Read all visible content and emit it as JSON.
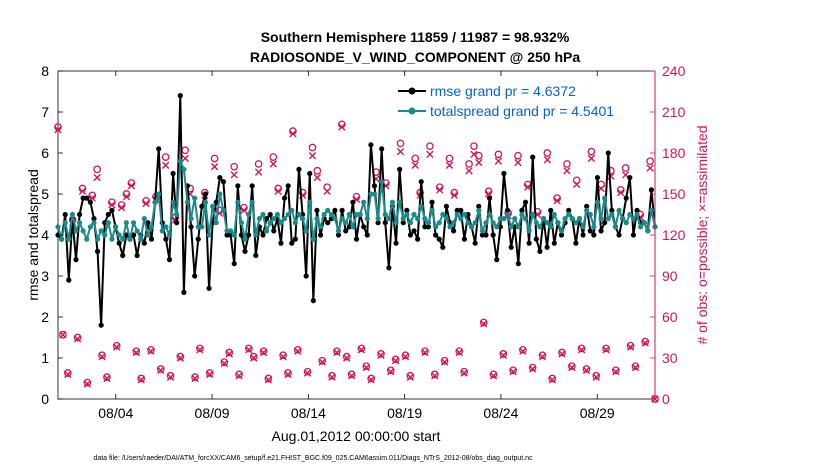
{
  "chart_data": {
    "type": "line",
    "title": "Southern Hemisphere 11859 / 11987 = 98.932%",
    "subtitle": "RADIOSONDE_V_WIND_COMPONENT @ 250 hPa",
    "xlabel": "Aug.01,2012 00:00:00 start",
    "ylabel": "rmse and totalspread",
    "y2label": "# of obs: o=possible; ×=assimilated",
    "footnote": "data file: /Users/raeder/DAI/ATM_forcXX/CAM6_setup/f.e21.FHIST_BGC.f09_025.CAM6assim.011/Diags_NTrS_2012-08/obs_diag_output.nc",
    "x_ticks": [
      "08/04",
      "08/09",
      "08/14",
      "08/19",
      "08/24",
      "08/29"
    ],
    "x_tick_days": [
      4,
      9,
      14,
      19,
      24,
      29
    ],
    "xlim_days": [
      1,
      32
    ],
    "ylim": [
      0,
      8
    ],
    "y_ticks": [
      "0",
      "1",
      "2",
      "3",
      "4",
      "5",
      "6",
      "7",
      "8"
    ],
    "y2lim": [
      0,
      240
    ],
    "y2_ticks": [
      "0",
      "30",
      "60",
      "90",
      "120",
      "150",
      "180",
      "210",
      "240"
    ],
    "grid": false,
    "legend_position": "top-right",
    "colors": {
      "rmse": "#000000",
      "totalspread": "#1a8a8a",
      "obs": "#d3145a",
      "legend_text": "#0a5fd6"
    },
    "series": [
      {
        "name": "rmse grand pr = 4.6372",
        "values": [
          4.0,
          3.9,
          4.5,
          2.9,
          4.4,
          3.4,
          4.5,
          4.9,
          4.9,
          4.8,
          4.4,
          3.6,
          1.8,
          4.3,
          4.5,
          4.6,
          4.2,
          3.8,
          3.5,
          4.0,
          3.9,
          4.0,
          3.5,
          4.0,
          3.8,
          4.3,
          3.9,
          4.8,
          6.1,
          4.3,
          3.9,
          3.4,
          5.5,
          4.3,
          7.4,
          2.6,
          5.2,
          4.2,
          3.0,
          3.9,
          4.7,
          5.0,
          2.7,
          4.3,
          4.8,
          5.4,
          5.3,
          4.0,
          4.0,
          3.3,
          5.2,
          4.0,
          3.6,
          4.0,
          5.2,
          3.5,
          4.2,
          4.0,
          4.4,
          4.5,
          4.1,
          4.4,
          3.8,
          4.9,
          5.2,
          3.8,
          3.9,
          5.6,
          4.5,
          3.0,
          5.5,
          2.4,
          4.6,
          4.0,
          4.4,
          4.3,
          4.4,
          4.6,
          4.0,
          4.6,
          4.1,
          4.2,
          4.8,
          3.9,
          4.5,
          4.2,
          4.0,
          6.2,
          5.2,
          4.3,
          6.1,
          4.3,
          3.2,
          4.7,
          3.8,
          5.6,
          4.3,
          4.6,
          4.0,
          4.1,
          3.9,
          5.3,
          4.2,
          4.2,
          4.8,
          4.0,
          3.9,
          3.7,
          4.7,
          4.3,
          4.1,
          4.6,
          4.6,
          3.9,
          4.5,
          4.2,
          3.8,
          4.7,
          4.0,
          4.0,
          4.9,
          4.0,
          3.4,
          4.2,
          5.5,
          4.6,
          3.7,
          4.2,
          3.3,
          4.6,
          4.8,
          3.8,
          5.9,
          3.9,
          3.6,
          4.4,
          3.7,
          4.6,
          3.8,
          4.3,
          4.0,
          4.3,
          4.6,
          4.4,
          3.8,
          4.4,
          4.0,
          4.7,
          4.1,
          4.0,
          5.4,
          4.1,
          4.3,
          6.0,
          4.6,
          4.2,
          4.0,
          4.4,
          4.9,
          5.4,
          4.0,
          4.6,
          4.3,
          4.3,
          4.1,
          5.1,
          4.2
        ]
      },
      {
        "name": "totalspread grand pr = 4.5401",
        "values": [
          4.2,
          3.9,
          4.3,
          3.9,
          4.5,
          4.1,
          4.3,
          4.1,
          3.9,
          4.2,
          4.3,
          3.9,
          4.1,
          4.0,
          4.3,
          3.9,
          4.2,
          4.0,
          3.9,
          4.3,
          3.9,
          4.3,
          4.1,
          3.9,
          4.4,
          4.0,
          4.2,
          4.8,
          5.0,
          4.1,
          4.2,
          4.0,
          4.8,
          4.5,
          5.8,
          5.6,
          4.8,
          4.4,
          4.9,
          4.2,
          4.2,
          4.8,
          4.0,
          4.7,
          4.3,
          5.0,
          4.6,
          4.1,
          4.1,
          4.0,
          4.8,
          4.3,
          3.9,
          4.5,
          4.8,
          4.0,
          4.4,
          4.5,
          4.1,
          4.3,
          4.4,
          4.5,
          4.3,
          4.4,
          4.5,
          4.6,
          4.3,
          4.5,
          4.4,
          4.1,
          4.8,
          3.9,
          4.4,
          4.2,
          4.5,
          4.6,
          4.5,
          4.4,
          4.1,
          4.4,
          4.3,
          4.5,
          4.2,
          4.5,
          4.5,
          4.8,
          4.4,
          5.0,
          5.0,
          4.4,
          5.3,
          4.5,
          4.4,
          4.8,
          4.3,
          4.8,
          4.4,
          4.5,
          4.3,
          4.5,
          4.4,
          4.7,
          4.4,
          4.3,
          4.6,
          4.2,
          4.3,
          4.5,
          4.4,
          4.2,
          4.3,
          4.5,
          4.4,
          4.5,
          4.3,
          4.2,
          4.3,
          4.6,
          4.1,
          4.3,
          4.5,
          4.3,
          4.2,
          4.4,
          4.4,
          4.5,
          4.2,
          4.4,
          4.2,
          4.5,
          4.4,
          4.1,
          4.5,
          4.3,
          4.2,
          4.4,
          4.3,
          4.2,
          4.5,
          4.3,
          4.1,
          4.4,
          4.5,
          4.4,
          4.3,
          4.4,
          4.2,
          4.6,
          4.5,
          4.2,
          4.8,
          4.4,
          4.9,
          4.4,
          4.5,
          4.2,
          4.6,
          4.4,
          4.3,
          4.5,
          4.4,
          4.5,
          4.2,
          4.3,
          4.1,
          4.6,
          4.2
        ]
      },
      {
        "name": "# of obs possible",
        "values": [
          199,
          47,
          19,
          131,
          45,
          154,
          12,
          149,
          168,
          32,
          16,
          144,
          39,
          142,
          150,
          158,
          35,
          15,
          145,
          36,
          148,
          22,
          177,
          17,
          133,
          31,
          182,
          154,
          16,
          37,
          151,
          19,
          176,
          138,
          27,
          34,
          170,
          18,
          140,
          37,
          31,
          172,
          35,
          15,
          177,
          154,
          32,
          19,
          196,
          36,
          151,
          20,
          184,
          167,
          28,
          155,
          17,
          35,
          201,
          31,
          18,
          148,
          37,
          24,
          15,
          166,
          33,
          158,
          21,
          29,
          187,
          32,
          17,
          176,
          151,
          35,
          185,
          18,
          155,
          28,
          176,
          151,
          35,
          20,
          172,
          185,
          178,
          56,
          152,
          18,
          179,
          33,
          136,
          21,
          178,
          36,
          157,
          23,
          137,
          32,
          180,
          15,
          147,
          34,
          172,
          24,
          160,
          37,
          22,
          181,
          17,
          157,
          37,
          167,
          21,
          153,
          169,
          39,
          24,
          135,
          42,
          174,
          0
        ]
      },
      {
        "name": "# of obs assimilated",
        "values": [
          197,
          47,
          18,
          129,
          44,
          152,
          11,
          147,
          162,
          31,
          15,
          142,
          38,
          140,
          148,
          156,
          34,
          14,
          143,
          35,
          146,
          21,
          171,
          16,
          131,
          30,
          176,
          150,
          15,
          36,
          149,
          18,
          170,
          136,
          26,
          33,
          164,
          17,
          138,
          36,
          30,
          166,
          34,
          14,
          172,
          152,
          31,
          18,
          194,
          35,
          149,
          19,
          178,
          162,
          27,
          152,
          16,
          34,
          199,
          30,
          17,
          146,
          36,
          23,
          14,
          161,
          32,
          156,
          20,
          28,
          181,
          31,
          16,
          171,
          149,
          34,
          179,
          17,
          153,
          27,
          171,
          149,
          34,
          19,
          167,
          179,
          173,
          55,
          150,
          17,
          174,
          32,
          134,
          20,
          173,
          35,
          155,
          22,
          135,
          31,
          175,
          14,
          145,
          33,
          167,
          23,
          157,
          36,
          21,
          176,
          16,
          154,
          36,
          163,
          20,
          151,
          164,
          38,
          23,
          133,
          41,
          169,
          0
        ]
      }
    ]
  }
}
